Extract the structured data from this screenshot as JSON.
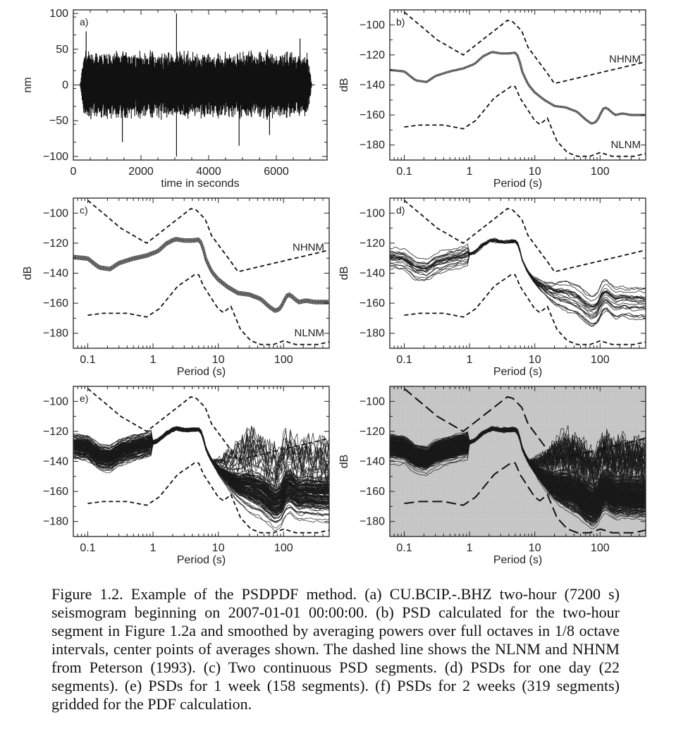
{
  "figure": {
    "caption": "Figure 1.2. Example of the PSDPDF method. (a) CU.BCIP.-.BHZ two-hour (7200 s) seismogram beginning on 2007-01-01 00:00:00. (b) PSD calculated for the two-hour segment in Figure 1.2a and smoothed by averaging powers over full octaves in 1/8 octave intervals, center points of averages shown. The dashed line shows the NLNM and NHNM from Peterson (1993). (c) Two continuous PSD segments. (d) PSDs for one day (22 segments). (e) PSDs for 1 week (158 segments). (f) PSDs for 2 weeks (319 segments) gridded for the PDF calculation."
  },
  "chart_data": [
    {
      "panel": "a",
      "type": "line",
      "label": "a)",
      "xlabel": "time in seconds",
      "ylabel": "nm",
      "xlim": [
        0,
        7500
      ],
      "ylim": [
        -105,
        105
      ],
      "xticks": [
        0,
        2000,
        4000,
        6000
      ],
      "yticks": [
        100,
        50,
        0,
        -50,
        -100
      ],
      "signal": {
        "start": 200,
        "end": 7050,
        "typical_amplitude": 50,
        "max_amplitude": 100,
        "min_amplitude": -100
      }
    },
    {
      "panel": "b",
      "type": "line",
      "label": "b)",
      "xlabel": "Period (s)",
      "ylabel": "dB",
      "xscale": "log",
      "xlim": [
        0.06,
        500
      ],
      "ylim": [
        -190,
        -90
      ],
      "xticks": [
        0.1,
        1,
        10,
        100
      ],
      "yticks": [
        -100,
        -120,
        -140,
        -160,
        -180
      ],
      "reference_labels": [
        "NHNM",
        "NLNM"
      ],
      "segments": 1
    },
    {
      "panel": "c",
      "type": "line",
      "label": "c)",
      "xlabel": "Period (s)",
      "ylabel": "dB",
      "xscale": "log",
      "xlim": [
        0.06,
        500
      ],
      "ylim": [
        -190,
        -90
      ],
      "xticks": [
        0.1,
        1,
        10,
        100
      ],
      "yticks": [
        -100,
        -120,
        -140,
        -160,
        -180
      ],
      "reference_labels": [
        "NHNM",
        "NLNM"
      ],
      "segments": 2
    },
    {
      "panel": "d",
      "type": "line",
      "label": "d)",
      "xlabel": "Period (s)",
      "ylabel": "dB",
      "xscale": "log",
      "xlim": [
        0.06,
        500
      ],
      "ylim": [
        -190,
        -90
      ],
      "xticks": [
        0.1,
        1,
        10,
        100
      ],
      "yticks": [
        -100,
        -120,
        -140,
        -160,
        -180
      ],
      "segments": 22
    },
    {
      "panel": "e",
      "type": "line",
      "label": "e)",
      "xlabel": "Period (s)",
      "ylabel": "",
      "xscale": "log",
      "xlim": [
        0.06,
        500
      ],
      "ylim": [
        -190,
        -90
      ],
      "xticks": [
        0.1,
        1,
        10,
        100
      ],
      "yticks": [
        -100,
        -120,
        -140,
        -160,
        -180
      ],
      "segments": 158
    },
    {
      "panel": "f",
      "type": "line",
      "label": "",
      "xlabel": "Period (s)",
      "ylabel": "dB",
      "xscale": "log",
      "xlim": [
        0.06,
        500
      ],
      "ylim": [
        -190,
        -90
      ],
      "xticks": [
        0.1,
        1,
        10,
        100
      ],
      "yticks": [
        -100,
        -120,
        -140,
        -160,
        -180
      ],
      "segments": 319,
      "gridded": true
    }
  ],
  "curves": {
    "nhnm": [
      [
        0.1,
        -91.5
      ],
      [
        0.22,
        -104
      ],
      [
        0.32,
        -110
      ],
      [
        0.8,
        -120
      ],
      [
        3.8,
        -97
      ],
      [
        4.6,
        -98
      ],
      [
        6.3,
        -104
      ],
      [
        7.9,
        -115
      ],
      [
        15.4,
        -132
      ],
      [
        20,
        -139
      ],
      [
        354.8,
        -126.2
      ],
      [
        10000,
        -110
      ]
    ],
    "nlnm": [
      [
        0.1,
        -168
      ],
      [
        0.17,
        -166.7
      ],
      [
        0.4,
        -166.7
      ],
      [
        0.8,
        -169.2
      ],
      [
        1.24,
        -163.7
      ],
      [
        2.4,
        -148.6
      ],
      [
        4.3,
        -141.1
      ],
      [
        5,
        -141.1
      ],
      [
        6,
        -149
      ],
      [
        10,
        -163.8
      ],
      [
        12,
        -166.2
      ],
      [
        15.6,
        -162.1
      ],
      [
        21.9,
        -177.5
      ],
      [
        31.6,
        -185
      ],
      [
        45,
        -187.5
      ],
      [
        70,
        -187.5
      ],
      [
        101,
        -185
      ],
      [
        154,
        -187.5
      ],
      [
        328,
        -187.5
      ],
      [
        600,
        -185
      ],
      [
        10000,
        -184
      ]
    ],
    "median_psd": [
      [
        0.06,
        -130
      ],
      [
        0.1,
        -131
      ],
      [
        0.15,
        -137
      ],
      [
        0.22,
        -138
      ],
      [
        0.3,
        -134
      ],
      [
        0.5,
        -131
      ],
      [
        0.8,
        -129
      ],
      [
        1.2,
        -126
      ],
      [
        1.6,
        -121
      ],
      [
        2.2,
        -118
      ],
      [
        3,
        -119
      ],
      [
        4,
        -119
      ],
      [
        5,
        -118.5
      ],
      [
        5.6,
        -121
      ],
      [
        6.5,
        -132
      ],
      [
        8,
        -140
      ],
      [
        10,
        -145
      ],
      [
        14,
        -150
      ],
      [
        20,
        -154
      ],
      [
        30,
        -155
      ],
      [
        45,
        -158
      ],
      [
        60,
        -163
      ],
      [
        75,
        -166
      ],
      [
        90,
        -164
      ],
      [
        110,
        -156
      ],
      [
        125,
        -155
      ],
      [
        140,
        -157
      ],
      [
        170,
        -160
      ],
      [
        220,
        -159
      ],
      [
        300,
        -160
      ],
      [
        500,
        -160
      ]
    ]
  }
}
